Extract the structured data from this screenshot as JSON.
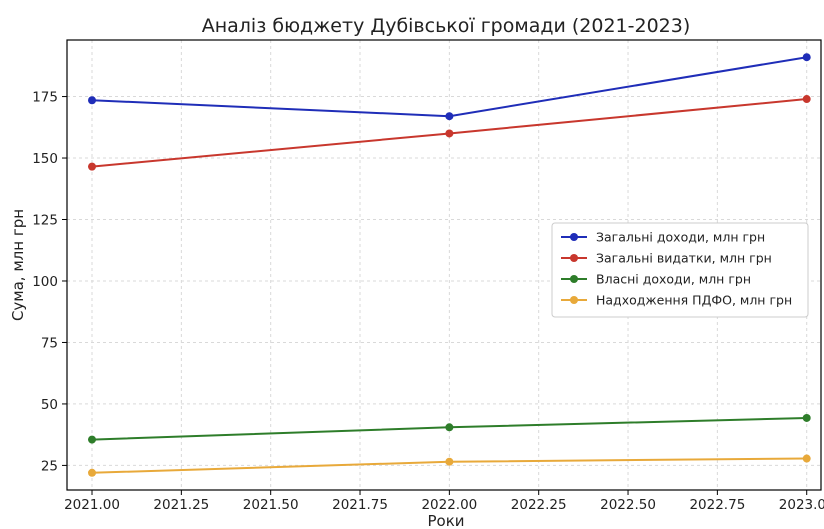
{
  "chart_data": {
    "type": "line",
    "title": "Аналіз бюджету Дубівської громади (2021-2023)",
    "xlabel": "Роки",
    "ylabel": "Сума, млн грн",
    "x": [
      2021,
      2022,
      2023
    ],
    "xlim": [
      2020.93,
      2023.04
    ],
    "ylim": [
      15,
      198
    ],
    "xticks": [
      2021.0,
      2021.25,
      2021.5,
      2021.75,
      2022.0,
      2022.25,
      2022.5,
      2022.75,
      2023.0
    ],
    "xtick_labels": [
      "2021.00",
      "2021.25",
      "2021.50",
      "2021.75",
      "2022.00",
      "2022.25",
      "2022.50",
      "2022.75",
      "2023.00"
    ],
    "yticks": [
      25,
      50,
      75,
      100,
      125,
      150,
      175
    ],
    "ytick_labels": [
      "25",
      "50",
      "75",
      "100",
      "125",
      "150",
      "175"
    ],
    "grid": true,
    "legend_position": "center-right",
    "series": [
      {
        "name": "Загальні доходи, млн грн",
        "values": [
          173.5,
          167.0,
          191.0
        ],
        "color": "#1f2db8"
      },
      {
        "name": "Загальні видатки, млн грн",
        "values": [
          146.5,
          160.0,
          174.0
        ],
        "color": "#c8372d"
      },
      {
        "name": "Власні доходи, млн грн",
        "values": [
          35.5,
          40.5,
          44.3
        ],
        "color": "#2e7d2a"
      },
      {
        "name": "Надходження ПДФО, млн грн",
        "values": [
          22.0,
          26.5,
          27.8
        ],
        "color": "#e8a93a"
      }
    ]
  }
}
